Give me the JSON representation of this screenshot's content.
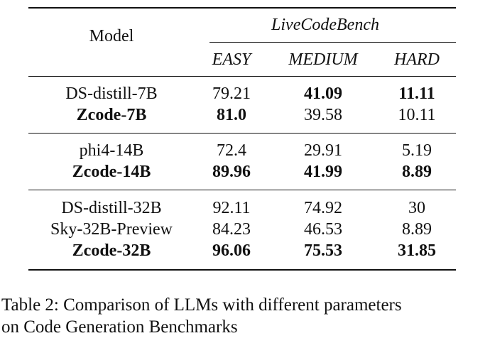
{
  "table": {
    "header": {
      "model": "Model",
      "group": "LiveCodeBench",
      "columns": [
        "EASY",
        "MEDIUM",
        "HARD"
      ]
    },
    "groups": [
      [
        {
          "model": "DS-distill-7B",
          "bold_model": false,
          "values": [
            "79.21",
            "41.09",
            "11.11"
          ],
          "bold": [
            false,
            true,
            true
          ]
        },
        {
          "model": "Zcode-7B",
          "bold_model": true,
          "values": [
            "81.0",
            "39.58",
            "10.11"
          ],
          "bold": [
            true,
            false,
            false
          ]
        }
      ],
      [
        {
          "model": "phi4-14B",
          "bold_model": false,
          "values": [
            "72.4",
            "29.91",
            "5.19"
          ],
          "bold": [
            false,
            false,
            false
          ]
        },
        {
          "model": "Zcode-14B",
          "bold_model": true,
          "values": [
            "89.96",
            "41.99",
            "8.89"
          ],
          "bold": [
            true,
            true,
            true
          ]
        }
      ],
      [
        {
          "model": "DS-distill-32B",
          "bold_model": false,
          "values": [
            "92.11",
            "74.92",
            "30"
          ],
          "bold": [
            false,
            false,
            false
          ]
        },
        {
          "model": "Sky-32B-Preview",
          "bold_model": false,
          "values": [
            "84.23",
            "46.53",
            "8.89"
          ],
          "bold": [
            false,
            false,
            false
          ]
        },
        {
          "model": "Zcode-32B",
          "bold_model": true,
          "values": [
            "96.06",
            "75.53",
            "31.85"
          ],
          "bold": [
            true,
            true,
            true
          ]
        }
      ]
    ]
  },
  "caption": {
    "line1": "Table 2: Comparison of LLMs with different parameters",
    "line2": "on Code Generation Benchmarks"
  }
}
